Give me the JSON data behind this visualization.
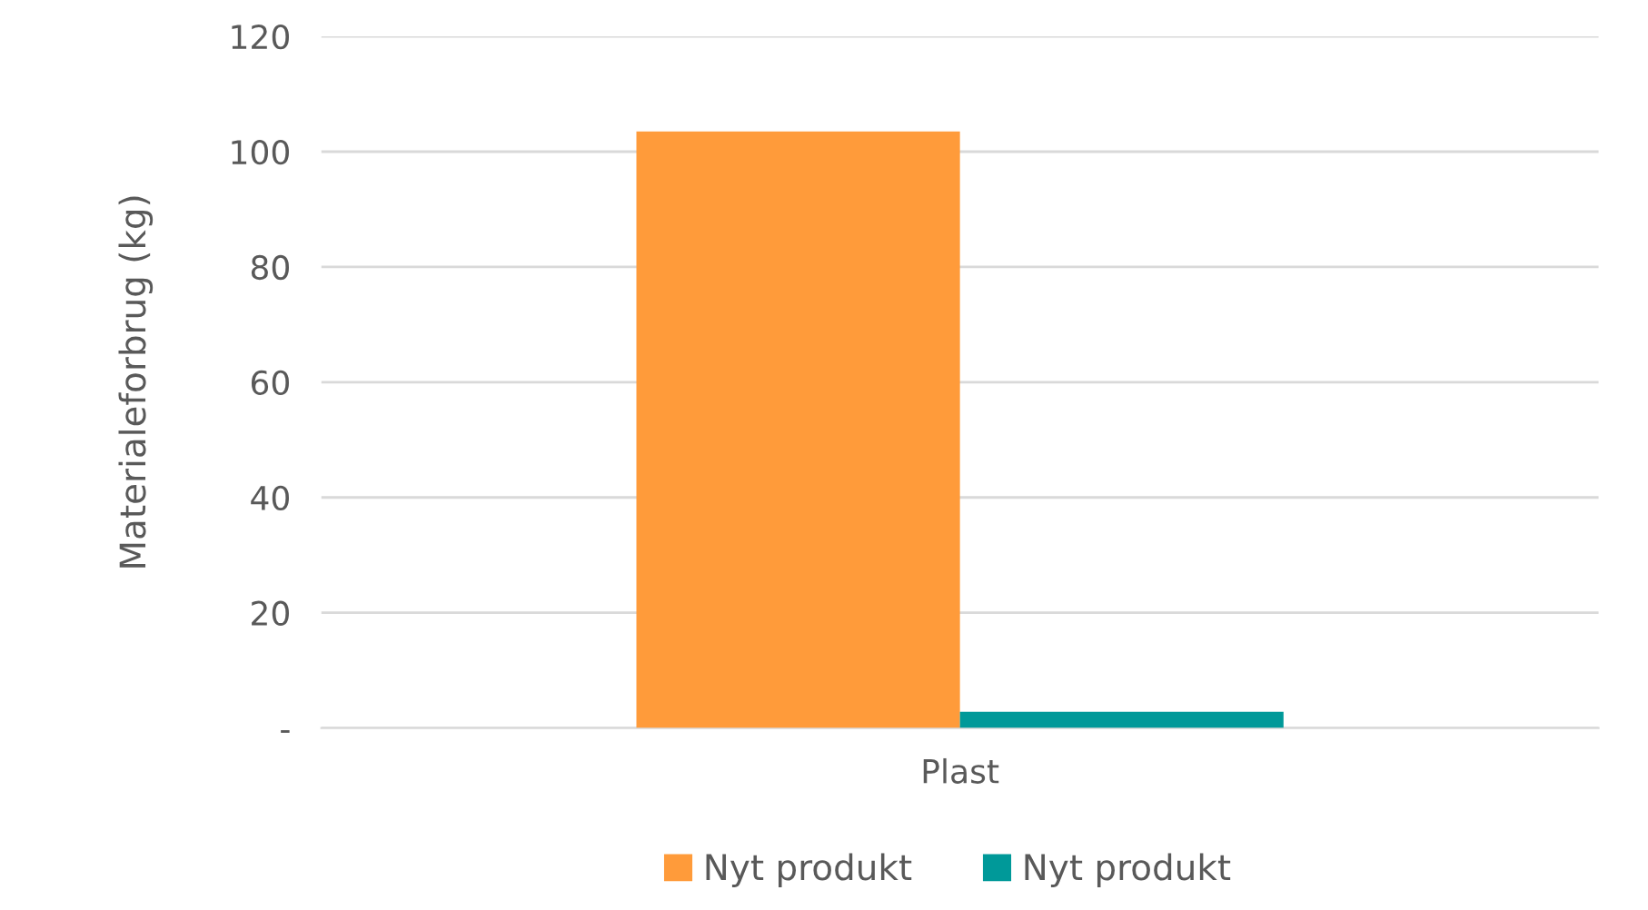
{
  "chart_data": {
    "type": "bar",
    "ylabel": "Materialeforbrug (kg)",
    "categories": [
      "Plast"
    ],
    "series": [
      {
        "name": "Nyt produkt",
        "color": "#ff9b3a",
        "values": [
          103.5
        ]
      },
      {
        "name": "Nyt produkt",
        "color": "#009999",
        "values": [
          2.8
        ]
      }
    ],
    "ylim": [
      0,
      120
    ],
    "yticks": [
      {
        "value": 0,
        "label": "-"
      },
      20,
      40,
      60,
      80,
      100,
      120
    ],
    "grid": "y",
    "legend": "bottom"
  }
}
